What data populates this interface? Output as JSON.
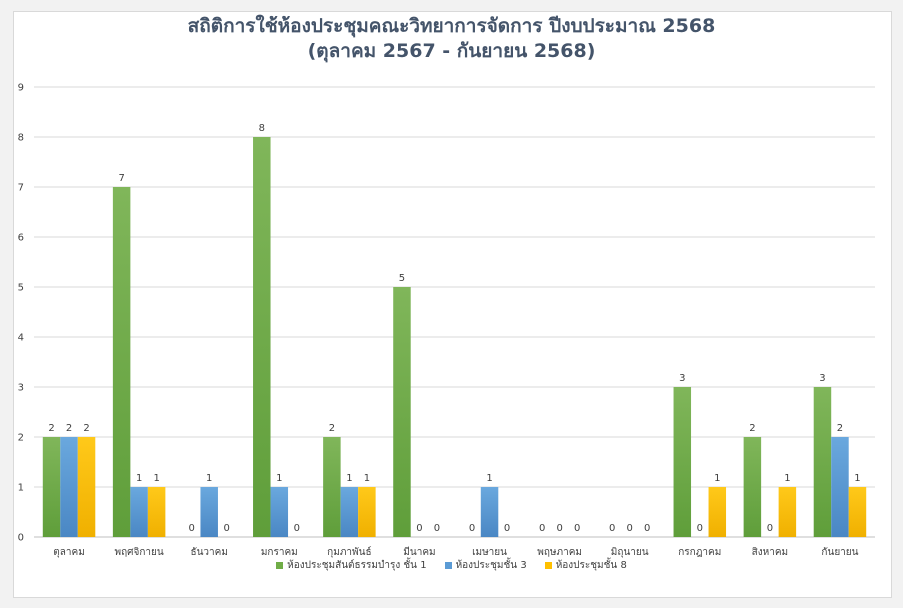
{
  "chart_data": {
    "type": "bar",
    "title_line1": "สถิติการใช้ห้องประชุมคณะวิทยาการจัดการ  ปีงบประมาณ 2568",
    "title_line2": "(ตุลาคม 2567 - กันยายน 2568)",
    "xlabel": "",
    "ylabel": "",
    "ylim": [
      0,
      9
    ],
    "yticks": [
      "0",
      "1",
      "2",
      "3",
      "4",
      "5",
      "6",
      "7",
      "8",
      "9"
    ],
    "grid": true,
    "legend_position": "bottom",
    "categories": [
      "ตุลาคม",
      "พฤศจิกายน",
      "ธันวาคม",
      "มกราคม",
      "กุมภาพันธ์",
      "มีนาคม",
      "เมษายน",
      "พฤษภาคม",
      "มิถุนายน",
      "กรกฎาคม",
      "สิงหาคม",
      "กันยายน"
    ],
    "series": [
      {
        "name": "ห้องประชุมสันต์ธรรมบำรุง ชั้น 1",
        "color": "#70ad47",
        "values": [
          2,
          7,
          0,
          8,
          2,
          5,
          0,
          0,
          0,
          3,
          2,
          3
        ]
      },
      {
        "name": "ห้องประชุมชั้น 3",
        "color": "#5b9bd5",
        "values": [
          2,
          1,
          1,
          1,
          1,
          0,
          1,
          0,
          0,
          0,
          0,
          2
        ]
      },
      {
        "name": "ห้องประชุมชั้น 8",
        "color": "#ffc000",
        "values": [
          2,
          1,
          0,
          0,
          1,
          0,
          0,
          0,
          0,
          1,
          1,
          1
        ]
      }
    ]
  }
}
